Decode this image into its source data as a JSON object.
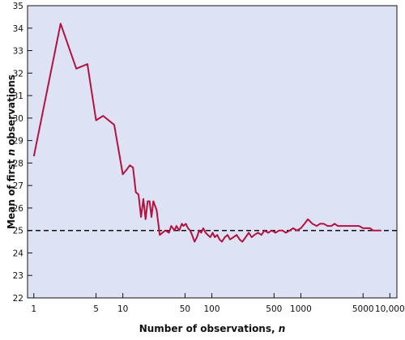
{
  "chart_data": {
    "type": "line",
    "xscale": "log",
    "xlim": [
      0.85,
      12000
    ],
    "ylim": [
      22,
      35
    ],
    "grid": false,
    "background_color": "#dde3f5",
    "line_color": "#b5123f",
    "reference_line": {
      "y": 25,
      "style": "dashed",
      "color": "#111111"
    },
    "xlabel": {
      "prefix": "Number of observations, ",
      "var": "n"
    },
    "ylabel": {
      "prefix": "Mean of first ",
      "var": "n",
      "suffix": " observations"
    },
    "x_ticks": [
      1,
      5,
      10,
      50,
      100,
      500,
      1000,
      5000,
      10000
    ],
    "x_tick_labels": [
      "1",
      "5",
      "10",
      "50",
      "100",
      "500",
      "1000",
      "5000",
      "10,000"
    ],
    "y_ticks": [
      22,
      23,
      24,
      25,
      26,
      27,
      28,
      29,
      30,
      31,
      32,
      33,
      34,
      35
    ],
    "y_tick_labels": [
      "22",
      "23",
      "24",
      "25",
      "26",
      "27",
      "28",
      "29",
      "30",
      "31",
      "32",
      "33",
      "34",
      "35"
    ],
    "series": [
      {
        "x": [
          1,
          2,
          3,
          4,
          5,
          6,
          8,
          10,
          11,
          12,
          13,
          14,
          15,
          16,
          17,
          18,
          19,
          20,
          21,
          22,
          23,
          24,
          26,
          30,
          33,
          35,
          38,
          40,
          43,
          46,
          48,
          51,
          54,
          57,
          60,
          64,
          68,
          72,
          76,
          80,
          85,
          90,
          96,
          102,
          108,
          115,
          122,
          130,
          140,
          150,
          160,
          175,
          190,
          205,
          220,
          240,
          260,
          280,
          300,
          330,
          360,
          390,
          430,
          470,
          520,
          570,
          620,
          680,
          750,
          820,
          900,
          1000,
          1100,
          1200,
          1350,
          1500,
          1650,
          1800,
          2000,
          2200,
          2400,
          2600,
          3000,
          3500,
          4000,
          4500,
          5000,
          5500,
          6000,
          6500,
          7000,
          8000
        ],
        "y": [
          28.3,
          34.2,
          32.2,
          32.4,
          29.9,
          30.1,
          29.7,
          27.5,
          27.7,
          27.9,
          27.8,
          26.7,
          26.6,
          25.6,
          26.4,
          25.5,
          26.3,
          26.3,
          25.6,
          26.3,
          26.1,
          25.9,
          24.8,
          25.0,
          24.9,
          25.2,
          25.0,
          25.2,
          25.0,
          25.3,
          25.2,
          25.3,
          25.1,
          25.0,
          24.8,
          24.5,
          24.7,
          25.0,
          24.9,
          25.1,
          24.9,
          24.8,
          24.7,
          24.9,
          24.7,
          24.8,
          24.6,
          24.5,
          24.7,
          24.8,
          24.6,
          24.7,
          24.8,
          24.6,
          24.5,
          24.7,
          24.9,
          24.7,
          24.8,
          24.9,
          24.8,
          25.0,
          24.9,
          25.0,
          24.9,
          25.0,
          25.0,
          24.9,
          25.0,
          25.1,
          25.0,
          25.1,
          25.3,
          25.5,
          25.3,
          25.2,
          25.3,
          25.3,
          25.2,
          25.2,
          25.3,
          25.2,
          25.2,
          25.2,
          25.2,
          25.2,
          25.1,
          25.1,
          25.1,
          25.0,
          25.0,
          25.0
        ]
      }
    ]
  }
}
